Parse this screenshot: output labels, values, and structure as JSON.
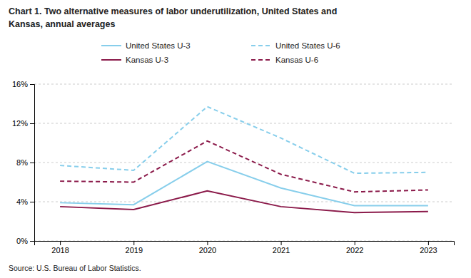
{
  "chart_data": {
    "type": "line",
    "title": [
      "Chart 1. Two alternative measures of labor underutilization, United States and",
      "Kansas, annual averages"
    ],
    "annotations": [
      "Source: U.S. Bureau of Labor Statistics."
    ],
    "x": [
      2018,
      2019,
      2020,
      2021,
      2022,
      2023
    ],
    "xlim": [
      2017.65,
      2023.35
    ],
    "xticks": [
      2018,
      2019,
      2020,
      2021,
      2022,
      2023
    ],
    "ylim": [
      0,
      16
    ],
    "yticks": [
      {
        "value": 0,
        "label": "0%"
      },
      {
        "value": 4,
        "label": "4%"
      },
      {
        "value": 8,
        "label": "8%"
      },
      {
        "value": 12,
        "label": "12%"
      },
      {
        "value": 16,
        "label": "16%"
      }
    ],
    "grid": "y",
    "legend": "top",
    "series": [
      {
        "name": "United States U-3",
        "color": "#87CEEB",
        "line_style": "solid",
        "values": [
          3.9,
          3.7,
          8.1,
          5.4,
          3.6,
          3.6
        ]
      },
      {
        "name": "United States U-6",
        "color": "#87CEEB",
        "line_style": "dashed",
        "values": [
          7.7,
          7.2,
          13.7,
          10.5,
          6.9,
          7.0
        ]
      },
      {
        "name": "Kansas U-3",
        "color": "#8B1A4A",
        "line_style": "solid",
        "values": [
          3.5,
          3.2,
          5.1,
          3.5,
          2.9,
          3.0
        ]
      },
      {
        "name": "Kansas U-6",
        "color": "#8B1A4A",
        "line_style": "dashed",
        "values": [
          6.1,
          6.0,
          10.2,
          6.8,
          5.0,
          5.2
        ]
      }
    ]
  }
}
